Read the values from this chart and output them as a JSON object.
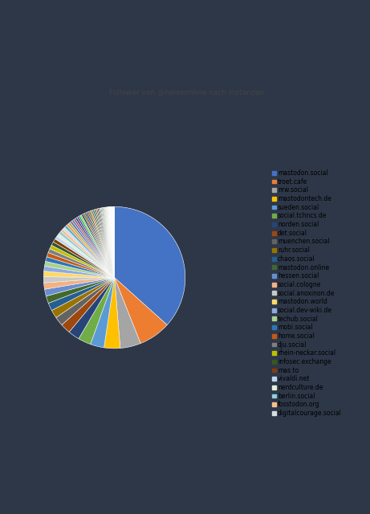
{
  "title": "Follower von @heiseonline nach Instanzen",
  "instances": [
    "mastodon.social",
    "troet.cafe",
    "nrw.social",
    "mastodontech.de",
    "sueden.social",
    "social.tchncs.de",
    "norden.social",
    "det.social",
    "muenchen.social",
    "ruhr.social",
    "chaos.social",
    "mastodon.online",
    "hessen.social",
    "social.cologne",
    "social.anoxinon.de",
    "mastodon.world",
    "social.dev-wiki.de",
    "techub.social",
    "mobi.social",
    "home.social",
    "dju.social",
    "rhein-neckar.social",
    "infosec.exchange",
    "mas.to",
    "vivaldi.net",
    "nerdculture.de",
    "berlin.social",
    "fosstodon.org",
    "digitalcourage.social"
  ],
  "values": [
    35.0,
    7.0,
    4.5,
    3.5,
    3.0,
    2.8,
    2.5,
    2.2,
    2.0,
    1.8,
    1.7,
    1.6,
    1.5,
    1.4,
    1.3,
    1.2,
    1.1,
    1.05,
    1.0,
    0.95,
    0.9,
    0.85,
    0.8,
    0.75,
    0.72,
    0.68,
    0.65,
    0.62,
    0.58
  ],
  "extra_values": [
    0.55,
    0.52,
    0.5,
    0.48,
    0.46,
    0.44,
    0.42,
    0.4,
    0.38,
    0.37,
    0.36,
    0.35,
    0.34,
    0.33,
    0.32,
    0.31,
    0.3,
    0.29,
    0.28,
    0.27,
    0.26,
    0.25,
    0.24,
    0.23,
    0.22,
    0.21,
    0.2,
    0.19,
    0.18,
    0.17,
    0.16,
    0.15,
    0.14,
    0.13,
    0.12,
    0.11,
    0.1,
    0.1,
    0.1,
    0.1,
    0.09,
    0.09,
    0.09,
    0.09,
    0.08,
    0.08,
    0.08,
    0.08,
    0.07,
    0.07
  ],
  "colors": [
    "#4472C4",
    "#ED7D31",
    "#A5A5A5",
    "#FFC000",
    "#5B9BD5",
    "#70AD47",
    "#264478",
    "#9E480E",
    "#636363",
    "#997300",
    "#255E91",
    "#43682B",
    "#698ED0",
    "#F4B183",
    "#C9C9C9",
    "#FFD966",
    "#8FAADC",
    "#A9D18E",
    "#2E75B6",
    "#C55A11",
    "#7F7F7F",
    "#BFBF00",
    "#375623",
    "#843C0C",
    "#BDD7EE",
    "#E2EFDA",
    "#92CDDC",
    "#FABF8F",
    "#D6DCE4"
  ],
  "extra_colors": [
    "#4BACC6",
    "#F79646",
    "#9BBB59",
    "#8064A2",
    "#4F81BD",
    "#C0504D",
    "#1F497D",
    "#7030A0",
    "#00B050",
    "#92D050",
    "#002060",
    "#7F6000",
    "#3F3F3F",
    "#17375E",
    "#953734",
    "#0C6239",
    "#E36C09",
    "#4F6228",
    "#215868",
    "#09600B",
    "#984807",
    "#254061",
    "#632523",
    "#4A452A",
    "#31849B",
    "#76923C",
    "#558ED5",
    "#948A54",
    "#99CC00",
    "#C4BD97",
    "#95B3D7",
    "#B8CCE4",
    "#E6B8A2",
    "#D7E4BC",
    "#CCC0DA",
    "#B7DEE8",
    "#FDEADA",
    "#EBF1DE",
    "#FDE9D9",
    "#DAEEF3",
    "#E4DFEC",
    "#F2DCDB",
    "#DCE6F1",
    "#EBF1DE",
    "#FDE9D9",
    "#DAEEF3",
    "#E4DFEC",
    "#F2DCDB",
    "#DCE6F1",
    "#EBF1DE"
  ],
  "outer_bg": "#2d3748",
  "chart_bg": "#ffffff",
  "title_fontsize": 6.5,
  "legend_fontsize": 5.5
}
